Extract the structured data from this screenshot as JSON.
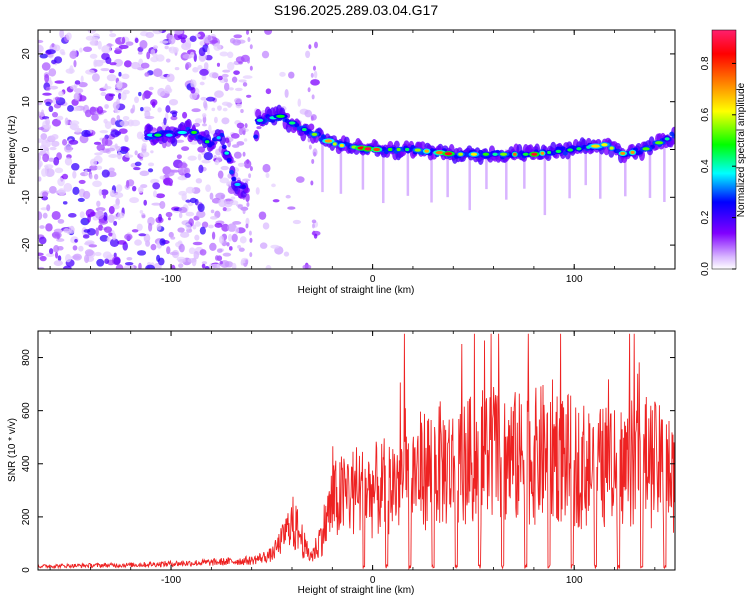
{
  "chart_data": [
    {
      "type": "heatmap",
      "title": "S196.2025.289.03.04.G17",
      "xlabel": "Height of straight line (km)",
      "ylabel": "Frequency (Hz)",
      "xlim": [
        -166,
        150
      ],
      "ylim": [
        -25,
        25
      ],
      "x_ticks": [
        -100,
        0,
        100
      ],
      "y_ticks": [
        -20,
        -10,
        0,
        10,
        20
      ],
      "colorbar": {
        "label": "Normalized spectral amplitude",
        "range": [
          0.0,
          0.93
        ],
        "ticks": [
          0.0,
          0.2,
          0.4,
          0.6,
          0.8
        ],
        "colors": [
          "#ffffff",
          "#8000ff",
          "#0000ff",
          "#00ffff",
          "#00ff00",
          "#ffff00",
          "#ff8000",
          "#ff0000",
          "#ff00aa"
        ]
      },
      "ridge": [
        {
          "x": -112,
          "f": 3
        },
        {
          "x": -100,
          "f": 3
        },
        {
          "x": -90,
          "f": 4
        },
        {
          "x": -80,
          "f": 1
        },
        {
          "x": -75,
          "f": 3
        },
        {
          "x": -68,
          "f": -7
        },
        {
          "x": -62,
          "f": -9
        },
        {
          "x": -57,
          "f": 6
        },
        {
          "x": -45,
          "f": 7
        },
        {
          "x": -38,
          "f": 5
        },
        {
          "x": -28,
          "f": 3
        },
        {
          "x": -18,
          "f": 1
        },
        {
          "x": 0,
          "f": 0
        },
        {
          "x": 20,
          "f": 0
        },
        {
          "x": 40,
          "f": -1
        },
        {
          "x": 60,
          "f": -1
        },
        {
          "x": 80,
          "f": -1
        },
        {
          "x": 100,
          "f": 0
        },
        {
          "x": 115,
          "f": 1
        },
        {
          "x": 125,
          "f": -1
        },
        {
          "x": 135,
          "f": 0
        },
        {
          "x": 150,
          "f": 3
        }
      ]
    },
    {
      "type": "line",
      "xlabel": "Height of straight line (km)",
      "ylabel": "SNR (10 * v/v)",
      "xlim": [
        -166,
        150
      ],
      "ylim": [
        0,
        900
      ],
      "x_ticks": [
        -100,
        0,
        100
      ],
      "y_ticks": [
        0,
        200,
        400,
        600,
        800
      ],
      "series": [
        {
          "name": "SNR",
          "color": "#ee2222",
          "x": [
            -166,
            -140,
            -120,
            -100,
            -80,
            -60,
            -50,
            -45,
            -40,
            -36,
            -33,
            -30,
            -27,
            -24,
            -20,
            -16,
            -12,
            -8,
            -4,
            0,
            5,
            10,
            15,
            20,
            25,
            30,
            35,
            40,
            45,
            50,
            55,
            60,
            65,
            70,
            75,
            80,
            85,
            90,
            95,
            100,
            105,
            110,
            115,
            120,
            125,
            130,
            135,
            140,
            145,
            150
          ],
          "values": [
            15,
            18,
            20,
            25,
            30,
            38,
            60,
            120,
            200,
            150,
            80,
            60,
            110,
            180,
            280,
            300,
            320,
            330,
            320,
            330,
            340,
            360,
            380,
            400,
            420,
            440,
            440,
            430,
            440,
            460,
            480,
            500,
            480,
            470,
            460,
            470,
            490,
            500,
            480,
            440,
            440,
            420,
            430,
            420,
            440,
            450,
            460,
            440,
            420,
            380
          ]
        }
      ]
    }
  ]
}
